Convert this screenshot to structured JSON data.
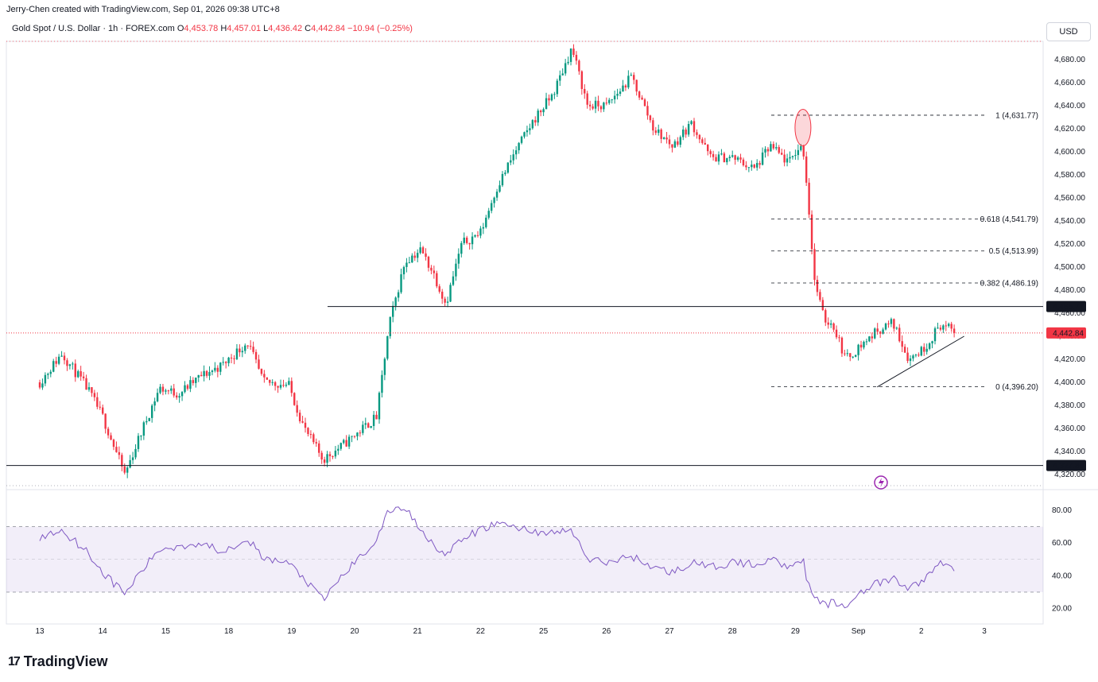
{
  "header": {
    "attribution": "Jerry-Chen created with TradingView.com, Sep 01, 2026 09:38 UTC+8"
  },
  "symbol": {
    "name": "Gold Spot / U.S. Dollar · 1h · FOREX.com",
    "open_label": "O",
    "open": "4,453.78",
    "high_label": "H",
    "high": "4,457.01",
    "low_label": "L",
    "low": "4,436.42",
    "close_label": "C",
    "close": "4,442.84",
    "change": "−10.94 (−0.25%)"
  },
  "currency_button": "USD",
  "brand": "TradingView",
  "colors": {
    "up": "#089981",
    "down": "#f23645",
    "rsi_line": "#7e57c2",
    "rsi_band": "#7e57c2",
    "last_price": "#f23645",
    "level_line": "#131722"
  },
  "chart_data": [
    {
      "type": "candlestick",
      "y_axis_labels": [
        "4,680.00",
        "4,660.00",
        "4,640.00",
        "4,620.00",
        "4,600.00",
        "4,580.00",
        "4,560.00",
        "4,540.00",
        "4,520.00",
        "4,500.00",
        "4,480.00",
        "4,460.00",
        "4,440.00",
        "4,420.00",
        "4,400.00",
        "4,380.00",
        "4,360.00",
        "4,340.00",
        "4,320.00"
      ],
      "ylim": [
        4312,
        4700
      ],
      "x_tick_labels": [
        "13",
        "14",
        "15",
        "18",
        "19",
        "20",
        "21",
        "22",
        "25",
        "26",
        "27",
        "28",
        "29",
        "Sep",
        "2",
        "3"
      ],
      "price_levels": [
        {
          "label": "4,465.77",
          "value": 4465.77,
          "style": "solid"
        },
        {
          "label": "4,327.85",
          "value": 4327.85,
          "style": "solid"
        },
        {
          "label": "4,442.84",
          "value": 4442.84,
          "style": "dotted-last-price"
        }
      ],
      "fibonacci": [
        {
          "label": "1 (4,631.77)",
          "value": 4631.77
        },
        {
          "label": "0.618 (4,541.79)",
          "value": 4541.79
        },
        {
          "label": "0.5 (4,513.99)",
          "value": 4513.99
        },
        {
          "label": "0.382 (4,486.19)",
          "value": 4486.19
        },
        {
          "label": "0 (4,396.20)",
          "value": 4396.2
        }
      ],
      "trendline": {
        "from": {
          "x_index": 13.3,
          "value": 4396
        },
        "to": {
          "x_index": 14.68,
          "value": 4440
        }
      },
      "price_path": [
        {
          "x": 0.0,
          "v": 4400
        },
        {
          "x": 0.35,
          "v": 4425
        },
        {
          "x": 0.75,
          "v": 4395
        },
        {
          "x": 1.0,
          "v": 4370
        },
        {
          "x": 1.35,
          "v": 4320
        },
        {
          "x": 1.6,
          "v": 4355
        },
        {
          "x": 1.9,
          "v": 4395
        },
        {
          "x": 2.2,
          "v": 4390
        },
        {
          "x": 2.55,
          "v": 4405
        },
        {
          "x": 2.9,
          "v": 4415
        },
        {
          "x": 3.3,
          "v": 4435
        },
        {
          "x": 3.55,
          "v": 4400
        },
        {
          "x": 3.95,
          "v": 4398
        },
        {
          "x": 4.2,
          "v": 4360
        },
        {
          "x": 4.5,
          "v": 4333
        },
        {
          "x": 4.8,
          "v": 4345
        },
        {
          "x": 5.35,
          "v": 4370
        },
        {
          "x": 5.55,
          "v": 4450
        },
        {
          "x": 5.8,
          "v": 4505
        },
        {
          "x": 6.05,
          "v": 4515
        },
        {
          "x": 6.25,
          "v": 4495
        },
        {
          "x": 6.45,
          "v": 4468
        },
        {
          "x": 6.7,
          "v": 4520
        },
        {
          "x": 7.0,
          "v": 4530
        },
        {
          "x": 7.25,
          "v": 4568
        },
        {
          "x": 7.55,
          "v": 4600
        },
        {
          "x": 7.85,
          "v": 4628
        },
        {
          "x": 8.15,
          "v": 4650
        },
        {
          "x": 8.45,
          "v": 4690
        },
        {
          "x": 8.7,
          "v": 4640
        },
        {
          "x": 9.0,
          "v": 4640
        },
        {
          "x": 9.4,
          "v": 4665
        },
        {
          "x": 9.75,
          "v": 4620
        },
        {
          "x": 10.05,
          "v": 4605
        },
        {
          "x": 10.35,
          "v": 4625
        },
        {
          "x": 10.65,
          "v": 4595
        },
        {
          "x": 11.0,
          "v": 4595
        },
        {
          "x": 11.35,
          "v": 4585
        },
        {
          "x": 11.6,
          "v": 4605
        },
        {
          "x": 11.9,
          "v": 4590
        },
        {
          "x": 12.0,
          "v": 4600
        },
        {
          "x": 12.12,
          "v": 4605
        },
        {
          "x": 12.2,
          "v": 4560
        },
        {
          "x": 12.3,
          "v": 4490
        },
        {
          "x": 12.45,
          "v": 4455
        },
        {
          "x": 12.6,
          "v": 4450
        },
        {
          "x": 12.8,
          "v": 4420
        },
        {
          "x": 13.0,
          "v": 4430
        },
        {
          "x": 13.3,
          "v": 4445
        },
        {
          "x": 13.55,
          "v": 4452
        },
        {
          "x": 13.8,
          "v": 4420
        },
        {
          "x": 14.05,
          "v": 4430
        },
        {
          "x": 14.3,
          "v": 4450
        },
        {
          "x": 14.55,
          "v": 4443
        }
      ],
      "last_x": 14.55
    },
    {
      "type": "line",
      "name": "RSI",
      "y_axis_labels": [
        "80.00",
        "60.00",
        "40.00",
        "20.00"
      ],
      "ylim": [
        15,
        87
      ],
      "band": [
        30,
        70
      ],
      "midline": 50,
      "path": [
        {
          "x": 0.0,
          "v": 63
        },
        {
          "x": 0.35,
          "v": 68
        },
        {
          "x": 0.75,
          "v": 55
        },
        {
          "x": 1.0,
          "v": 42
        },
        {
          "x": 1.35,
          "v": 29
        },
        {
          "x": 1.6,
          "v": 42
        },
        {
          "x": 1.9,
          "v": 56
        },
        {
          "x": 2.2,
          "v": 58
        },
        {
          "x": 2.55,
          "v": 60
        },
        {
          "x": 2.9,
          "v": 55
        },
        {
          "x": 3.3,
          "v": 63
        },
        {
          "x": 3.55,
          "v": 50
        },
        {
          "x": 3.95,
          "v": 48
        },
        {
          "x": 4.2,
          "v": 38
        },
        {
          "x": 4.5,
          "v": 25
        },
        {
          "x": 4.8,
          "v": 40
        },
        {
          "x": 5.35,
          "v": 62
        },
        {
          "x": 5.55,
          "v": 80
        },
        {
          "x": 5.8,
          "v": 82
        },
        {
          "x": 6.05,
          "v": 68
        },
        {
          "x": 6.25,
          "v": 60
        },
        {
          "x": 6.45,
          "v": 52
        },
        {
          "x": 6.7,
          "v": 62
        },
        {
          "x": 7.0,
          "v": 68
        },
        {
          "x": 7.25,
          "v": 72
        },
        {
          "x": 7.55,
          "v": 70
        },
        {
          "x": 7.85,
          "v": 67
        },
        {
          "x": 8.15,
          "v": 66
        },
        {
          "x": 8.45,
          "v": 68
        },
        {
          "x": 8.7,
          "v": 50
        },
        {
          "x": 9.0,
          "v": 48
        },
        {
          "x": 9.4,
          "v": 52
        },
        {
          "x": 9.75,
          "v": 45
        },
        {
          "x": 10.05,
          "v": 42
        },
        {
          "x": 10.35,
          "v": 48
        },
        {
          "x": 10.65,
          "v": 45
        },
        {
          "x": 11.0,
          "v": 48
        },
        {
          "x": 11.35,
          "v": 47
        },
        {
          "x": 11.6,
          "v": 50
        },
        {
          "x": 11.9,
          "v": 46
        },
        {
          "x": 12.0,
          "v": 49
        },
        {
          "x": 12.12,
          "v": 50
        },
        {
          "x": 12.2,
          "v": 35
        },
        {
          "x": 12.3,
          "v": 26
        },
        {
          "x": 12.45,
          "v": 22
        },
        {
          "x": 12.6,
          "v": 24
        },
        {
          "x": 12.8,
          "v": 20
        },
        {
          "x": 13.0,
          "v": 30
        },
        {
          "x": 13.3,
          "v": 35
        },
        {
          "x": 13.55,
          "v": 38
        },
        {
          "x": 13.8,
          "v": 32
        },
        {
          "x": 14.05,
          "v": 38
        },
        {
          "x": 14.3,
          "v": 48
        },
        {
          "x": 14.55,
          "v": 44
        }
      ]
    }
  ]
}
